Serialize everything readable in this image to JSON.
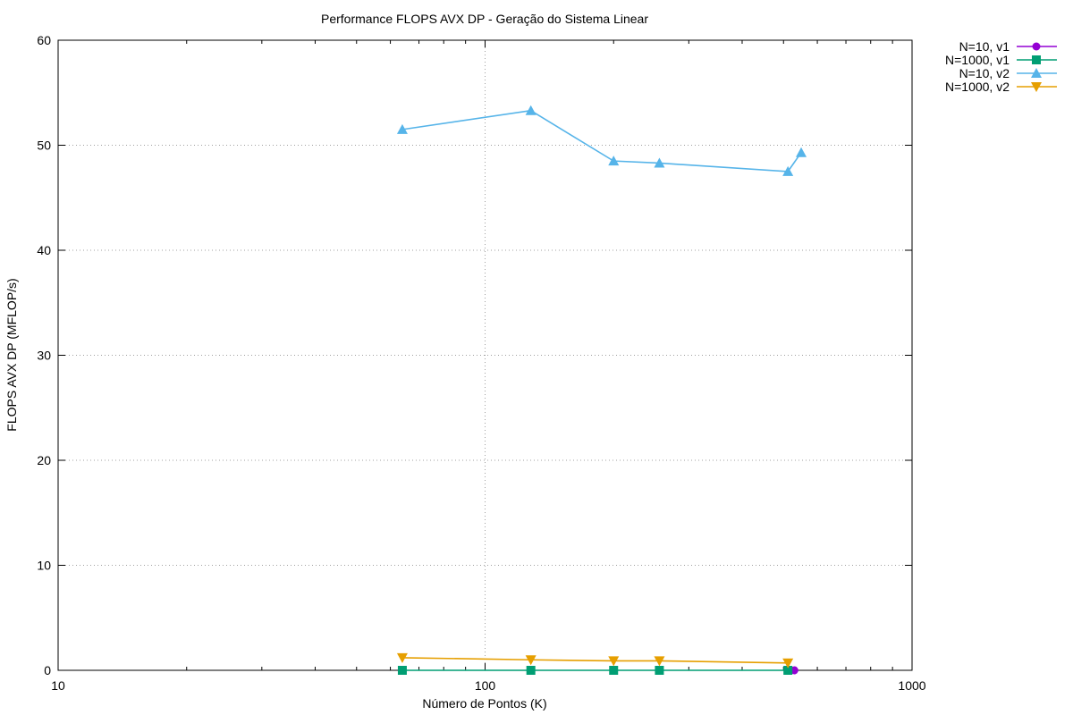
{
  "chart_data": {
    "type": "line",
    "title": "Performance FLOPS AVX DP - Geração do Sistema Linear",
    "xlabel": "Número de Pontos (K)",
    "ylabel": "FLOPS AVX DP (MFLOP/s)",
    "xscale": "log",
    "xlim": [
      10,
      1000
    ],
    "ylim": [
      0,
      60
    ],
    "xticks": [
      10,
      100,
      1000
    ],
    "yticks": [
      0,
      10,
      20,
      30,
      40,
      50,
      60
    ],
    "grid": true,
    "legend_position": "outside-top-right",
    "series": [
      {
        "name": "N=10, v1",
        "color": "#9400d3",
        "marker": "circle",
        "points": [
          [
            530,
            0.0
          ]
        ]
      },
      {
        "name": "N=1000, v1",
        "color": "#009e73",
        "marker": "square",
        "points": [
          [
            64,
            0.0
          ],
          [
            128,
            0.0
          ],
          [
            200,
            0.0
          ],
          [
            256,
            0.0
          ],
          [
            512,
            0.0
          ]
        ]
      },
      {
        "name": "N=10, v2",
        "color": "#56b4e9",
        "marker": "triangle-up",
        "points": [
          [
            64,
            51.5
          ],
          [
            128,
            53.3
          ],
          [
            200,
            48.5
          ],
          [
            256,
            48.3
          ],
          [
            512,
            47.5
          ],
          [
            550,
            49.3
          ]
        ]
      },
      {
        "name": "N=1000, v2",
        "color": "#e69f00",
        "marker": "triangle-down",
        "points": [
          [
            64,
            1.2
          ],
          [
            128,
            1.0
          ],
          [
            200,
            0.9
          ],
          [
            256,
            0.9
          ],
          [
            512,
            0.7
          ]
        ]
      }
    ]
  }
}
